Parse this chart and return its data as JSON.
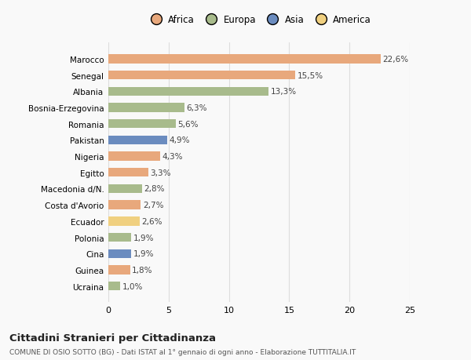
{
  "countries": [
    "Ucraina",
    "Guinea",
    "Cina",
    "Polonia",
    "Ecuador",
    "Costa d'Avorio",
    "Macedonia d/N.",
    "Egitto",
    "Nigeria",
    "Pakistan",
    "Romania",
    "Bosnia-Erzegovina",
    "Albania",
    "Senegal",
    "Marocco"
  ],
  "values": [
    1.0,
    1.8,
    1.9,
    1.9,
    2.6,
    2.7,
    2.8,
    3.3,
    4.3,
    4.9,
    5.6,
    6.3,
    13.3,
    15.5,
    22.6
  ],
  "labels": [
    "1,0%",
    "1,8%",
    "1,9%",
    "1,9%",
    "2,6%",
    "2,7%",
    "2,8%",
    "3,3%",
    "4,3%",
    "4,9%",
    "5,6%",
    "6,3%",
    "13,3%",
    "15,5%",
    "22,6%"
  ],
  "continents": [
    "Europa",
    "Africa",
    "Asia",
    "Europa",
    "America",
    "Africa",
    "Europa",
    "Africa",
    "Africa",
    "Asia",
    "Europa",
    "Europa",
    "Europa",
    "Africa",
    "Africa"
  ],
  "continent_colors": {
    "Africa": "#E8A87C",
    "Europa": "#A8BB8C",
    "Asia": "#6B8CBF",
    "America": "#F0D080"
  },
  "legend_order": [
    "Africa",
    "Europa",
    "Asia",
    "America"
  ],
  "title": "Cittadini Stranieri per Cittadinanza",
  "subtitle": "COMUNE DI OSIO SOTTO (BG) - Dati ISTAT al 1° gennaio di ogni anno - Elaborazione TUTTITALIA.IT",
  "xlim": [
    0,
    25
  ],
  "xticks": [
    0,
    5,
    10,
    15,
    20,
    25
  ],
  "background_color": "#f9f9f9",
  "bar_height": 0.55,
  "grid_color": "#dddddd",
  "label_fontsize": 7.5,
  "ytick_fontsize": 7.5,
  "xtick_fontsize": 8
}
